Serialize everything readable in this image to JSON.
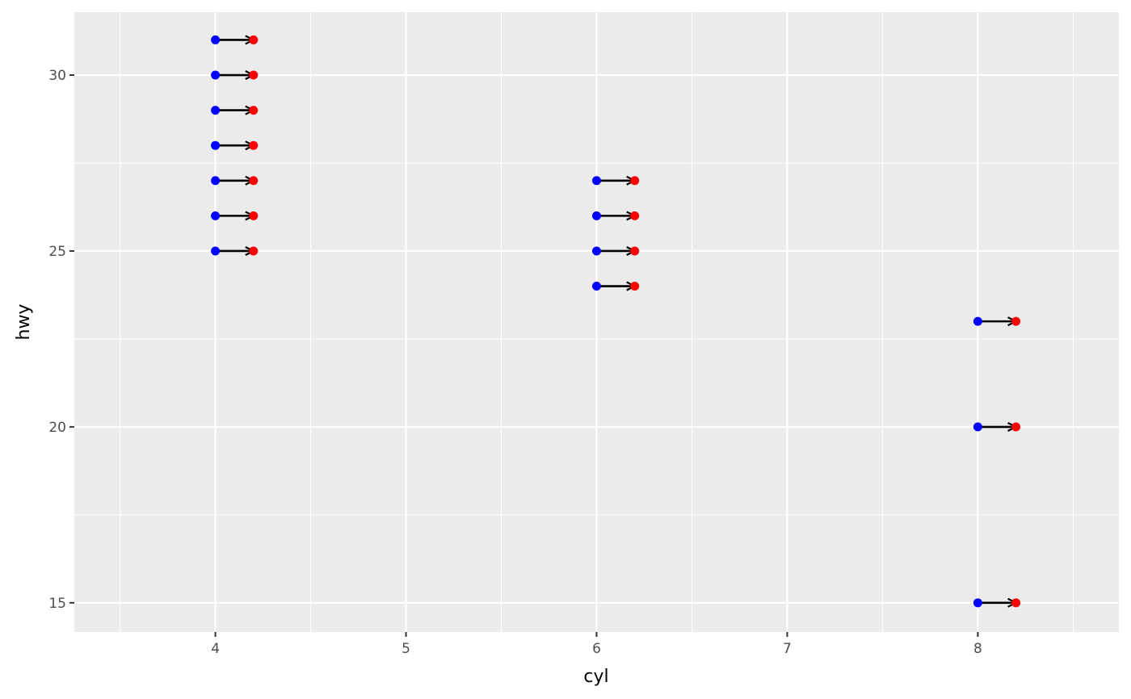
{
  "chart_data": {
    "type": "segment",
    "x_label": "cyl",
    "y_label": "hwy",
    "start": {
      "color": "#0000ff",
      "x": [
        4,
        4,
        4,
        4,
        4,
        4,
        4,
        6,
        6,
        6,
        6,
        8,
        8,
        8
      ],
      "y": [
        31,
        30,
        29,
        28,
        27,
        26,
        25,
        27,
        26,
        25,
        24,
        23,
        20,
        15
      ]
    },
    "end": {
      "color": "#ff0000",
      "x": [
        4.2,
        4.2,
        4.2,
        4.2,
        4.2,
        4.2,
        4.2,
        6.2,
        6.2,
        6.2,
        6.2,
        8.2,
        8.2,
        8.2
      ],
      "y": [
        31,
        30,
        29,
        28,
        27,
        26,
        25,
        27,
        26,
        25,
        24,
        23,
        20,
        15
      ]
    },
    "arrow_color": "#000000",
    "xlim": [
      3.26,
      8.74
    ],
    "ylim": [
      14.17,
      31.79
    ],
    "xticks": [
      4,
      5,
      6,
      7,
      8
    ],
    "yticks": [
      15,
      20,
      25,
      30
    ],
    "minor_xticks": [
      3.5,
      4.5,
      5.5,
      6.5,
      7.5,
      8.5
    ],
    "minor_yticks": [
      17.5,
      22.5,
      27.5
    ],
    "grid": true
  }
}
